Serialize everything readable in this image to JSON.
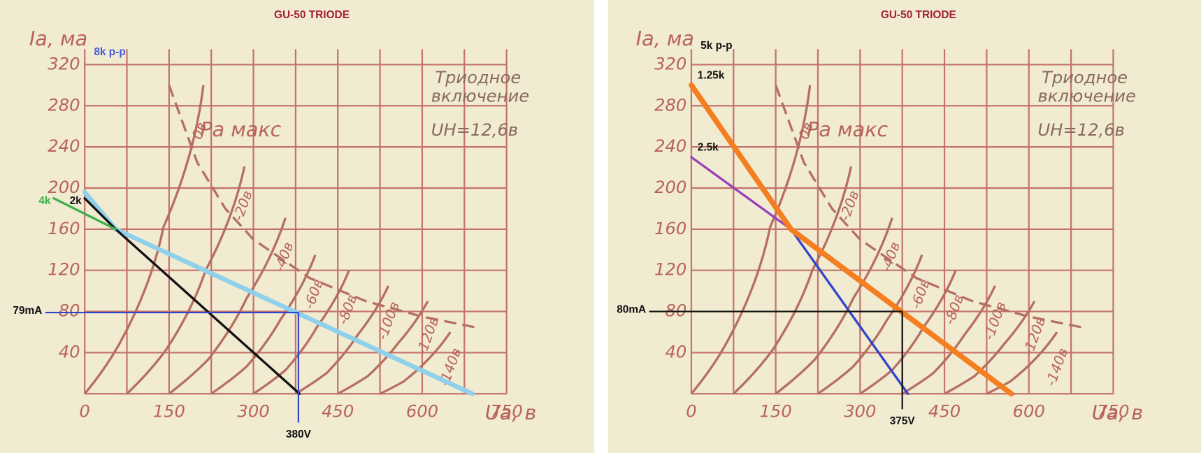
{
  "chart_data": [
    {
      "type": "line",
      "title": "GU-50 TRIODE",
      "y_label": "Iа, ма",
      "x_label": "Uа, в",
      "xlim": [
        0,
        750
      ],
      "ylim": [
        0,
        320
      ],
      "xticks": [
        0,
        150,
        300,
        450,
        600,
        750
      ],
      "yticks": [
        40,
        80,
        120,
        160,
        200,
        240,
        280,
        320
      ],
      "xgrid": [
        75,
        150,
        225,
        300,
        375,
        450,
        525,
        600,
        675,
        750
      ],
      "grid": true,
      "grid_color": "#c4726a",
      "annotations": [
        "Триодное",
        "включение",
        "UН=12,6в",
        "Pa макс"
      ],
      "curve_color": "#b56f60",
      "curves": [
        {
          "name": "0в",
          "x": [
            0,
            70,
            140,
            211
          ],
          "y": [
            0,
            57,
            162,
            300
          ]
        },
        {
          "name": "-20в",
          "x": [
            75,
            145,
            215,
            284
          ],
          "y": [
            0,
            43,
            120,
            221
          ]
        },
        {
          "name": "-40в",
          "x": [
            150,
            219,
            288,
            357
          ],
          "y": [
            0,
            33,
            93,
            171
          ]
        },
        {
          "name": "-60в",
          "x": [
            225,
            287,
            348,
            410
          ],
          "y": [
            0,
            26,
            72,
            135
          ]
        },
        {
          "name": "-80в",
          "x": [
            300,
            357,
            413,
            470
          ],
          "y": [
            0,
            23,
            65,
            120
          ]
        },
        {
          "name": "-100в",
          "x": [
            375,
            430,
            485,
            540
          ],
          "y": [
            0,
            20,
            57,
            105
          ]
        },
        {
          "name": "-120в",
          "x": [
            450,
            503,
            557,
            610
          ],
          "y": [
            0,
            17,
            49,
            90
          ]
        },
        {
          "name": "-140в",
          "x": [
            525,
            567,
            608,
            650
          ],
          "y": [
            0,
            12,
            32,
            60
          ]
        }
      ],
      "pmax": {
        "x": [
          150,
          200,
          250,
          300,
          400,
          500,
          600,
          700
        ],
        "y": [
          300,
          225,
          180,
          150,
          112.5,
          90,
          75,
          64
        ]
      },
      "load_note": {
        "text": "8k p-p",
        "color": "#4a5bd6"
      },
      "load_lines": [
        {
          "color": "#8fd0ea",
          "width": 6,
          "x": [
            0,
            55,
            689
          ],
          "y": [
            196,
            160,
            0
          ]
        },
        {
          "name": "2k",
          "color": "#111111",
          "width": 3,
          "x": [
            0,
            55,
            382
          ],
          "y": [
            190,
            160,
            0
          ]
        },
        {
          "name": "4k",
          "color": "#3cb04a",
          "width": 3,
          "x": [
            -55,
            55
          ],
          "y": [
            190,
            160
          ]
        }
      ],
      "markers": [
        {
          "label": "79mA",
          "color": "#3344cc",
          "x": [
            -70,
            380
          ],
          "y": [
            79,
            79
          ]
        },
        {
          "label": "380V",
          "color": "#3344cc",
          "x": [
            380,
            380
          ],
          "y": [
            79,
            -28
          ]
        }
      ]
    },
    {
      "type": "line",
      "title": "GU-50 TRIODE",
      "y_label": "Iа, ма",
      "x_label": "Uа, в",
      "xlim": [
        0,
        750
      ],
      "ylim": [
        0,
        320
      ],
      "xticks": [
        0,
        150,
        300,
        450,
        600,
        750
      ],
      "yticks": [
        40,
        80,
        120,
        160,
        200,
        240,
        280,
        320
      ],
      "xgrid": [
        75,
        150,
        225,
        300,
        375,
        450,
        525,
        600,
        675,
        750
      ],
      "grid": true,
      "grid_color": "#c4726a",
      "annotations": [
        "Триодное",
        "включение",
        "UН=12,6в",
        "Pa макс"
      ],
      "curve_color": "#b56f60",
      "curves": [
        {
          "name": "0в",
          "x": [
            0,
            70,
            140,
            211
          ],
          "y": [
            0,
            57,
            162,
            300
          ]
        },
        {
          "name": "-20в",
          "x": [
            75,
            145,
            215,
            284
          ],
          "y": [
            0,
            43,
            120,
            221
          ]
        },
        {
          "name": "-40в",
          "x": [
            150,
            219,
            288,
            357
          ],
          "y": [
            0,
            33,
            93,
            171
          ]
        },
        {
          "name": "-60в",
          "x": [
            225,
            287,
            348,
            410
          ],
          "y": [
            0,
            26,
            72,
            135
          ]
        },
        {
          "name": "-80в",
          "x": [
            300,
            357,
            413,
            470
          ],
          "y": [
            0,
            23,
            65,
            120
          ]
        },
        {
          "name": "-100в",
          "x": [
            375,
            430,
            485,
            540
          ],
          "y": [
            0,
            20,
            57,
            105
          ]
        },
        {
          "name": "-120в",
          "x": [
            450,
            503,
            557,
            610
          ],
          "y": [
            0,
            17,
            49,
            90
          ]
        },
        {
          "name": "-140в",
          "x": [
            525,
            567,
            608,
            650
          ],
          "y": [
            0,
            12,
            32,
            60
          ]
        }
      ],
      "pmax": {
        "x": [
          150,
          200,
          250,
          300,
          400,
          500,
          600,
          700
        ],
        "y": [
          300,
          225,
          180,
          150,
          112.5,
          90,
          75,
          64
        ]
      },
      "load_note": {
        "text": "5k p-p",
        "color": "#111111"
      },
      "load_lines": [
        {
          "name": "2.5k",
          "color": "#9a3fb8",
          "width": 3,
          "x": [
            0,
            177,
            573
          ],
          "y": [
            230,
            160,
            0
          ]
        },
        {
          "color": "#3344cc",
          "width": 3,
          "x": [
            177,
            385
          ],
          "y": [
            160,
            0
          ]
        },
        {
          "name": "1.25k",
          "color": "#f47f20",
          "width": 7,
          "x": [
            0,
            177,
            569
          ],
          "y": [
            300,
            160,
            0
          ]
        }
      ],
      "markers": [
        {
          "label": "80mA",
          "color": "#111111",
          "x": [
            -75,
            375
          ],
          "y": [
            80,
            80
          ]
        },
        {
          "label": "375V",
          "color": "#111111",
          "x": [
            375,
            375
          ],
          "y": [
            80,
            -15
          ]
        }
      ]
    }
  ]
}
